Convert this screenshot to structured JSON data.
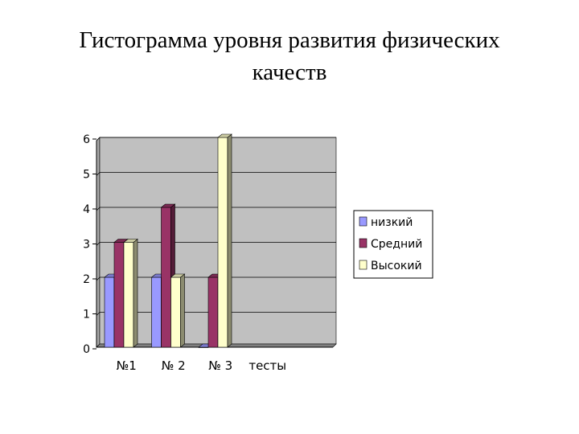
{
  "title": {
    "line1": "Гистограмма уровня развития физических",
    "line2": "качеств"
  },
  "colors": {
    "wall": "#c0c0c0",
    "floor": "#808080",
    "gridline": "#000000",
    "low": "#9999ff",
    "medium": "#993366",
    "high": "#ffffcc"
  },
  "chart_data": {
    "type": "bar",
    "title": "Гистограмма уровня развития физических качеств",
    "xlabel": "",
    "ylabel": "",
    "categories": [
      "№1",
      "№ 2",
      "№ 3",
      "тесты",
      ""
    ],
    "series": [
      {
        "name": "низкий",
        "values": [
          2,
          2,
          0,
          null,
          null
        ],
        "color": "#9999ff"
      },
      {
        "name": "Средний",
        "values": [
          3,
          4,
          2,
          null,
          null
        ],
        "color": "#993366"
      },
      {
        "name": "Высокий",
        "values": [
          3,
          2,
          6,
          null,
          null
        ],
        "color": "#ffffcc"
      }
    ],
    "ylim": [
      0,
      6
    ],
    "yticks": [
      0,
      1,
      2,
      3,
      4,
      5,
      6
    ],
    "grid": true,
    "legend": "right",
    "style": "3d-clustered-column"
  }
}
